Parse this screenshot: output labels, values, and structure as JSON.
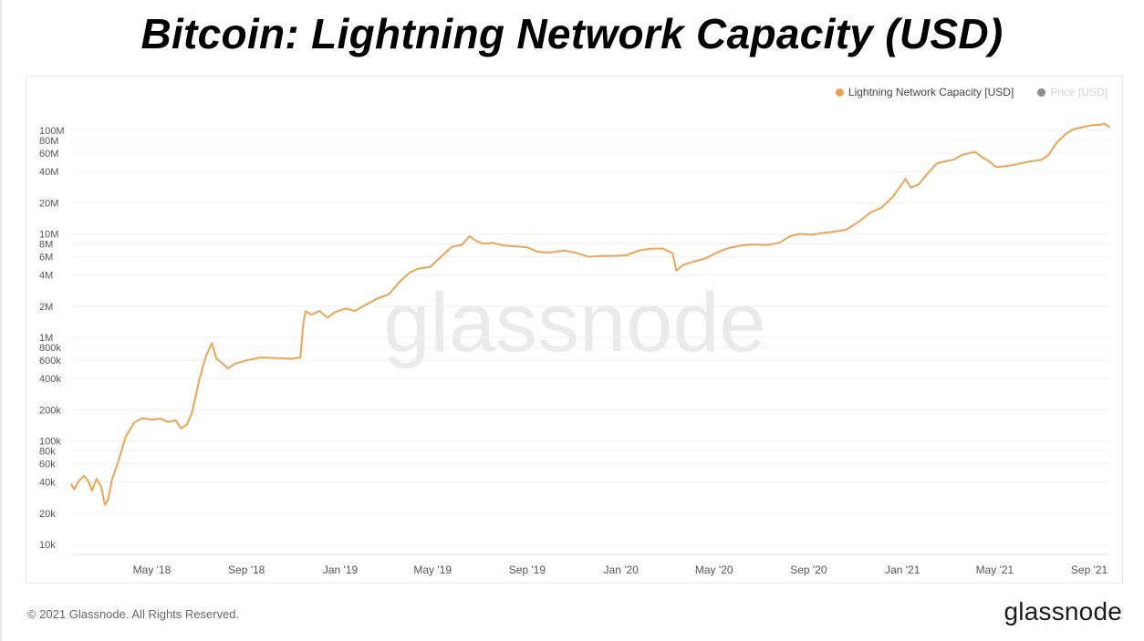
{
  "page": {
    "title": "Bitcoin: Lightning Network Capacity (USD)",
    "copyright": "© 2021 Glassnode. All Rights Reserved.",
    "brand": "glassnode",
    "watermark": "glassnode"
  },
  "legend": {
    "series_label": "Lightning Network Capacity [USD]",
    "price_label": "Price [USD]",
    "series_color": "#e8a559",
    "price_color": "#8c8c8c"
  },
  "colors": {
    "line": "#e8a559",
    "grid": "#efefef",
    "axis_text": "#555555",
    "watermark": "#eaeaea"
  },
  "chart_data": {
    "type": "line",
    "title": "Bitcoin: Lightning Network Capacity (USD)",
    "y_scale": "log",
    "ylim": [
      8000,
      130000000
    ],
    "xlim": [
      "2018-01-16",
      "2021-09-27"
    ],
    "y_ticks": [
      {
        "value": 10000,
        "label": "10k"
      },
      {
        "value": 20000,
        "label": "20k"
      },
      {
        "value": 40000,
        "label": "40k"
      },
      {
        "value": 60000,
        "label": "60k"
      },
      {
        "value": 80000,
        "label": "80k"
      },
      {
        "value": 100000,
        "label": "100k"
      },
      {
        "value": 200000,
        "label": "200k"
      },
      {
        "value": 400000,
        "label": "400k"
      },
      {
        "value": 600000,
        "label": "600k"
      },
      {
        "value": 800000,
        "label": "800k"
      },
      {
        "value": 1000000,
        "label": "1M"
      },
      {
        "value": 2000000,
        "label": "2M"
      },
      {
        "value": 4000000,
        "label": "4M"
      },
      {
        "value": 6000000,
        "label": "6M"
      },
      {
        "value": 8000000,
        "label": "8M"
      },
      {
        "value": 10000000,
        "label": "10M"
      },
      {
        "value": 20000000,
        "label": "20M"
      },
      {
        "value": 40000000,
        "label": "40M"
      },
      {
        "value": 60000000,
        "label": "60M"
      },
      {
        "value": 80000000,
        "label": "80M"
      },
      {
        "value": 100000000,
        "label": "100M"
      }
    ],
    "x_ticks": [
      {
        "date": "2018-05-01",
        "label": "May '18"
      },
      {
        "date": "2018-09-01",
        "label": "Sep '18"
      },
      {
        "date": "2019-01-01",
        "label": "Jan '19"
      },
      {
        "date": "2019-05-01",
        "label": "May '19"
      },
      {
        "date": "2019-09-01",
        "label": "Sep '19"
      },
      {
        "date": "2020-01-01",
        "label": "Jan '20"
      },
      {
        "date": "2020-05-01",
        "label": "May '20"
      },
      {
        "date": "2020-09-01",
        "label": "Sep '20"
      },
      {
        "date": "2021-01-01",
        "label": "Jan '21"
      },
      {
        "date": "2021-05-01",
        "label": "May '21"
      },
      {
        "date": "2021-09-01",
        "label": "Sep '21"
      }
    ],
    "series": [
      {
        "name": "Lightning Network Capacity [USD]",
        "points": [
          [
            "2018-01-16",
            38000
          ],
          [
            "2018-01-20",
            34000
          ],
          [
            "2018-01-26",
            41000
          ],
          [
            "2018-02-02",
            46000
          ],
          [
            "2018-02-08",
            40000
          ],
          [
            "2018-02-12",
            33000
          ],
          [
            "2018-02-18",
            43000
          ],
          [
            "2018-02-24",
            36000
          ],
          [
            "2018-03-01",
            24000
          ],
          [
            "2018-03-05",
            27000
          ],
          [
            "2018-03-10",
            42000
          ],
          [
            "2018-03-18",
            62000
          ],
          [
            "2018-03-28",
            110000
          ],
          [
            "2018-04-08",
            150000
          ],
          [
            "2018-04-18",
            165000
          ],
          [
            "2018-05-01",
            160000
          ],
          [
            "2018-05-12",
            164000
          ],
          [
            "2018-05-22",
            152000
          ],
          [
            "2018-06-01",
            158000
          ],
          [
            "2018-06-08",
            132000
          ],
          [
            "2018-06-15",
            142000
          ],
          [
            "2018-06-22",
            185000
          ],
          [
            "2018-07-02",
            400000
          ],
          [
            "2018-07-10",
            650000
          ],
          [
            "2018-07-18",
            880000
          ],
          [
            "2018-07-24",
            620000
          ],
          [
            "2018-08-01",
            560000
          ],
          [
            "2018-08-08",
            500000
          ],
          [
            "2018-08-18",
            560000
          ],
          [
            "2018-09-01",
            600000
          ],
          [
            "2018-09-20",
            640000
          ],
          [
            "2018-10-10",
            630000
          ],
          [
            "2018-10-30",
            620000
          ],
          [
            "2018-11-10",
            640000
          ],
          [
            "2018-11-14",
            1400000
          ],
          [
            "2018-11-17",
            1800000
          ],
          [
            "2018-11-24",
            1650000
          ],
          [
            "2018-12-05",
            1800000
          ],
          [
            "2018-12-15",
            1550000
          ],
          [
            "2018-12-25",
            1750000
          ],
          [
            "2019-01-08",
            1900000
          ],
          [
            "2019-01-20",
            1800000
          ],
          [
            "2019-02-05",
            2100000
          ],
          [
            "2019-02-20",
            2400000
          ],
          [
            "2019-03-05",
            2600000
          ],
          [
            "2019-03-20",
            3500000
          ],
          [
            "2019-04-01",
            4200000
          ],
          [
            "2019-04-12",
            4600000
          ],
          [
            "2019-04-28",
            4800000
          ],
          [
            "2019-05-12",
            6000000
          ],
          [
            "2019-05-26",
            7500000
          ],
          [
            "2019-06-08",
            7800000
          ],
          [
            "2019-06-18",
            9500000
          ],
          [
            "2019-06-26",
            8600000
          ],
          [
            "2019-07-06",
            8000000
          ],
          [
            "2019-07-18",
            8200000
          ],
          [
            "2019-08-01",
            7700000
          ],
          [
            "2019-08-15",
            7600000
          ],
          [
            "2019-09-01",
            7400000
          ],
          [
            "2019-09-15",
            6700000
          ],
          [
            "2019-10-01",
            6600000
          ],
          [
            "2019-10-20",
            6900000
          ],
          [
            "2019-11-05",
            6500000
          ],
          [
            "2019-11-20",
            6000000
          ],
          [
            "2019-12-05",
            6100000
          ],
          [
            "2019-12-20",
            6100000
          ],
          [
            "2020-01-08",
            6200000
          ],
          [
            "2020-01-25",
            6900000
          ],
          [
            "2020-02-10",
            7200000
          ],
          [
            "2020-02-25",
            7200000
          ],
          [
            "2020-03-08",
            6500000
          ],
          [
            "2020-03-13",
            4400000
          ],
          [
            "2020-03-22",
            5000000
          ],
          [
            "2020-04-05",
            5400000
          ],
          [
            "2020-04-20",
            5800000
          ],
          [
            "2020-05-05",
            6600000
          ],
          [
            "2020-05-20",
            7300000
          ],
          [
            "2020-06-05",
            7700000
          ],
          [
            "2020-06-20",
            7900000
          ],
          [
            "2020-07-10",
            7800000
          ],
          [
            "2020-07-25",
            8200000
          ],
          [
            "2020-08-08",
            9500000
          ],
          [
            "2020-08-20",
            10000000
          ],
          [
            "2020-09-05",
            9800000
          ],
          [
            "2020-09-20",
            10200000
          ],
          [
            "2020-10-05",
            10500000
          ],
          [
            "2020-10-20",
            11000000
          ],
          [
            "2020-11-05",
            13000000
          ],
          [
            "2020-11-20",
            16000000
          ],
          [
            "2020-12-05",
            18000000
          ],
          [
            "2020-12-20",
            23000000
          ],
          [
            "2021-01-05",
            34000000
          ],
          [
            "2021-01-12",
            28000000
          ],
          [
            "2021-01-22",
            30000000
          ],
          [
            "2021-02-05",
            40000000
          ],
          [
            "2021-02-15",
            48000000
          ],
          [
            "2021-02-25",
            50000000
          ],
          [
            "2021-03-08",
            52000000
          ],
          [
            "2021-03-20",
            58000000
          ],
          [
            "2021-04-05",
            62000000
          ],
          [
            "2021-04-15",
            55000000
          ],
          [
            "2021-04-24",
            50000000
          ],
          [
            "2021-05-03",
            44000000
          ],
          [
            "2021-05-15",
            45000000
          ],
          [
            "2021-05-30",
            47000000
          ],
          [
            "2021-06-15",
            50000000
          ],
          [
            "2021-07-01",
            52000000
          ],
          [
            "2021-07-10",
            58000000
          ],
          [
            "2021-07-20",
            75000000
          ],
          [
            "2021-08-01",
            92000000
          ],
          [
            "2021-08-12",
            103000000
          ],
          [
            "2021-08-25",
            108000000
          ],
          [
            "2021-09-05",
            112000000
          ],
          [
            "2021-09-15",
            113000000
          ],
          [
            "2021-09-20",
            116000000
          ],
          [
            "2021-09-27",
            108000000
          ]
        ]
      }
    ]
  }
}
